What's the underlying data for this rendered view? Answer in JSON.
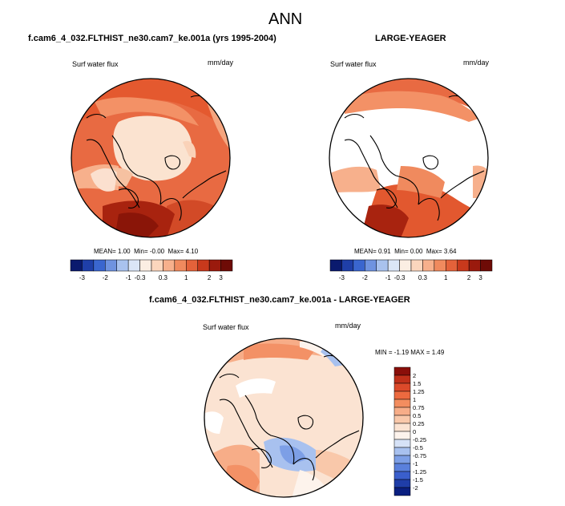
{
  "title": "ANN",
  "panels": [
    {
      "case_title": "f.cam6_4_032.FLTHIST_ne30.cam7_ke.001a (yrs 1995-2004)",
      "variable": "Surf water flux",
      "units": "mm/day",
      "stats": {
        "mean_label": "MEAN=",
        "mean": "1.00",
        "min_label": "Min=",
        "min": "-0.00",
        "max_label": "Max=",
        "max": "4.10"
      }
    },
    {
      "case_title": "LARGE-YEAGER",
      "variable": "Surf water flux",
      "units": "mm/day",
      "stats": {
        "mean_label": "MEAN=",
        "mean": "0.91",
        "min_label": "Min=",
        "min": "0.00",
        "max_label": "Max=",
        "max": "3.64"
      }
    },
    {
      "case_title": "f.cam6_4_032.FLTHIST_ne30.cam7_ke.001a - LARGE-YEAGER",
      "variable": "Surf water flux",
      "units": "mm/day",
      "stats": {
        "min_label": "MIN =",
        "min": "-1.19",
        "max_label": "MAX =",
        "max": "1.49"
      }
    }
  ],
  "colorbar_abs": {
    "labels": [
      "-3",
      "-2",
      "-1",
      "-0.3",
      "0.3",
      "1",
      "2",
      "3"
    ],
    "colors": [
      "#0a1a6e",
      "#1f3fa8",
      "#3a66cf",
      "#6f93e0",
      "#a9c2ee",
      "#dbe6f7",
      "#fbeee3",
      "#fbd6bd",
      "#f7b08c",
      "#f08a5e",
      "#e4623a",
      "#c8391c",
      "#9a1a0d",
      "#6e0b06"
    ]
  },
  "colorbar_diff": {
    "labels": [
      "2",
      "1.5",
      "1.25",
      "1",
      "0.75",
      "0.5",
      "0.25",
      "0",
      "-0.25",
      "-0.5",
      "-0.75",
      "-1",
      "-1.25",
      "-1.5",
      "-2"
    ],
    "colors": [
      "#8a0f0a",
      "#c0301a",
      "#dc4a2a",
      "#ec6a3f",
      "#f38d5f",
      "#f7ad88",
      "#f9c8aa",
      "#fbe3d2",
      "#fdf3ec",
      "#d6e2f7",
      "#a8c1ef",
      "#7d9fe6",
      "#5a80dc",
      "#3a5fcc",
      "#1f3da8",
      "#0a1f80"
    ]
  }
}
